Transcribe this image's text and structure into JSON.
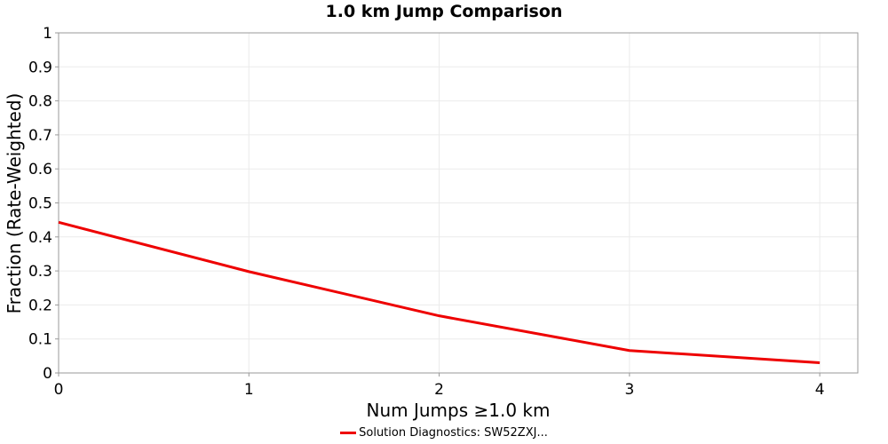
{
  "chart_data": {
    "type": "line",
    "title": "1.0 km Jump Comparison",
    "xlabel": "Num Jumps ≥1.0 km",
    "ylabel": "Fraction (Rate-Weighted)",
    "xlim": [
      0,
      4.2
    ],
    "ylim": [
      0,
      1
    ],
    "grid": true,
    "x_ticks": [
      "0",
      "1",
      "2",
      "3",
      "4"
    ],
    "y_ticks": [
      "0",
      "0.1",
      "0.2",
      "0.3",
      "0.4",
      "0.5",
      "0.6",
      "0.7",
      "0.8",
      "0.9",
      "1"
    ],
    "series": [
      {
        "name": "Solution Diagnostics: SW52ZXJ...",
        "color": "#ee0000",
        "x": [
          0,
          1,
          2,
          3,
          4
        ],
        "y": [
          0.443,
          0.298,
          0.168,
          0.066,
          0.03
        ]
      }
    ],
    "legend_position": "bottom-center"
  }
}
